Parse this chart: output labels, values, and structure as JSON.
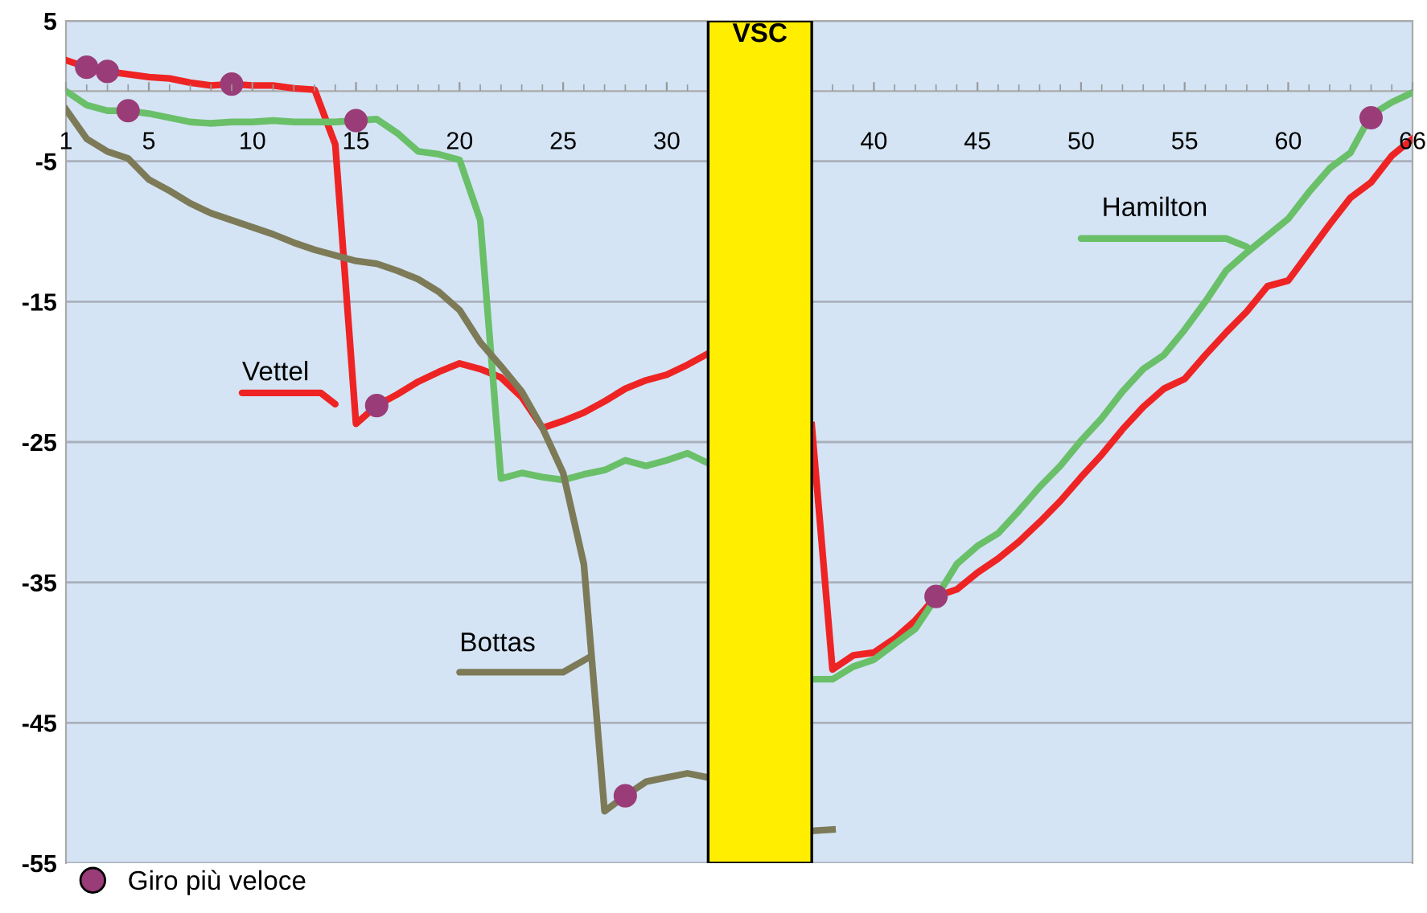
{
  "chart_data": {
    "type": "line",
    "x": [
      1,
      2,
      3,
      4,
      5,
      6,
      7,
      8,
      9,
      10,
      11,
      12,
      13,
      14,
      15,
      16,
      17,
      18,
      19,
      20,
      21,
      22,
      23,
      24,
      25,
      26,
      27,
      28,
      29,
      30,
      31,
      32,
      33,
      34,
      35,
      36,
      37,
      38,
      39,
      40,
      41,
      42,
      43,
      44,
      45,
      46,
      47,
      48,
      49,
      50,
      51,
      52,
      53,
      54,
      55,
      56,
      57,
      58,
      59,
      60,
      61,
      62,
      63,
      64,
      65,
      66
    ],
    "series": [
      {
        "name": "Vettel",
        "color": "#ee2424",
        "values": [
          2.2,
          1.7,
          1.4,
          1.2,
          1.0,
          0.9,
          0.6,
          0.4,
          0.5,
          0.4,
          0.4,
          0.2,
          0.1,
          -3.8,
          -23.7,
          -22.4,
          -21.6,
          -20.7,
          -20.0,
          -19.4,
          -19.8,
          -20.4,
          -21.8,
          -24.0,
          -23.5,
          -22.9,
          -22.1,
          -21.2,
          -20.6,
          -20.2,
          -19.5,
          -18.7,
          null,
          null,
          null,
          null,
          -23.8,
          -41.2,
          -40.2,
          -40.0,
          -39.0,
          -37.7,
          -36.0,
          -35.5,
          -34.3,
          -33.3,
          -32.1,
          -30.7,
          -29.2,
          -27.5,
          -25.9,
          -24.1,
          -22.5,
          -21.2,
          -20.5,
          -18.8,
          -17.2,
          -15.7,
          -13.9,
          -13.5,
          -11.5,
          -9.5,
          -7.6,
          -6.5,
          -4.6,
          -3.4
        ]
      },
      {
        "name": "Hamilton",
        "color": "#6abf69",
        "values": [
          0.0,
          -1.0,
          -1.4,
          -1.4,
          -1.6,
          -1.9,
          -2.2,
          -2.3,
          -2.2,
          -2.2,
          -2.1,
          -2.2,
          -2.2,
          -2.2,
          -2.1,
          -2.0,
          -3.0,
          -4.3,
          -4.5,
          -4.9,
          -9.2,
          -27.6,
          -27.2,
          -27.5,
          -27.7,
          -27.3,
          -27.0,
          -26.3,
          -26.7,
          -26.3,
          -25.8,
          -26.5,
          null,
          null,
          null,
          null,
          -41.9,
          -41.9,
          -41.0,
          -40.5,
          -39.4,
          -38.3,
          -36.1,
          -33.7,
          -32.4,
          -31.5,
          -29.9,
          -28.2,
          -26.7,
          -24.9,
          -23.3,
          -21.4,
          -19.8,
          -18.8,
          -17.0,
          -15.0,
          -12.8,
          -11.5,
          -10.3,
          -9.1,
          -7.2,
          -5.5,
          -4.4,
          -1.7,
          -0.8,
          -0.1
        ]
      },
      {
        "name": "Bottas",
        "color": "#7d7a58",
        "values": [
          -1.3,
          -3.4,
          -4.3,
          -4.8,
          -6.3,
          -7.1,
          -8.0,
          -8.7,
          -9.2,
          -9.7,
          -10.2,
          -10.8,
          -11.3,
          -11.7,
          -12.1,
          -12.3,
          -12.8,
          -13.4,
          -14.3,
          -15.6,
          -17.9,
          -19.6,
          -21.4,
          -24.0,
          -27.2,
          -33.7,
          -51.3,
          -50.2,
          -49.2,
          -48.9,
          -48.6,
          -48.9,
          null,
          null,
          null,
          null,
          -52.7,
          -52.6,
          null,
          null,
          null,
          null,
          null,
          null,
          null,
          null,
          null,
          null,
          null,
          null,
          null,
          null,
          null,
          null,
          null,
          null,
          null,
          null,
          null,
          null,
          null,
          null,
          null,
          null,
          null,
          null
        ]
      },
      {
        "name": "Giro più veloce",
        "type": "scatter",
        "marker": "circle",
        "color": "#9a3c78",
        "x": [
          2,
          3,
          4,
          9,
          15,
          16,
          28,
          43,
          64
        ],
        "values": [
          1.7,
          1.4,
          -1.4,
          0.5,
          -2.1,
          -22.4,
          -50.2,
          -36.0,
          -1.9
        ]
      }
    ],
    "xlim": [
      1,
      66
    ],
    "xticks": [
      1,
      5,
      10,
      15,
      20,
      25,
      30,
      {
        "value": 35,
        "label": null
      },
      40,
      45,
      50,
      55,
      60,
      66
    ],
    "ylim": [
      -55,
      5
    ],
    "yticks": [
      5,
      -5,
      -15,
      -25,
      -35,
      -45,
      -55
    ],
    "bands": [
      {
        "axis": "x",
        "from": 32,
        "to": 37,
        "label": "VSC",
        "color": "#ffee00"
      }
    ],
    "grid": "y",
    "legend": "bottom left",
    "marker": "none",
    "line_style": "solid"
  }
}
